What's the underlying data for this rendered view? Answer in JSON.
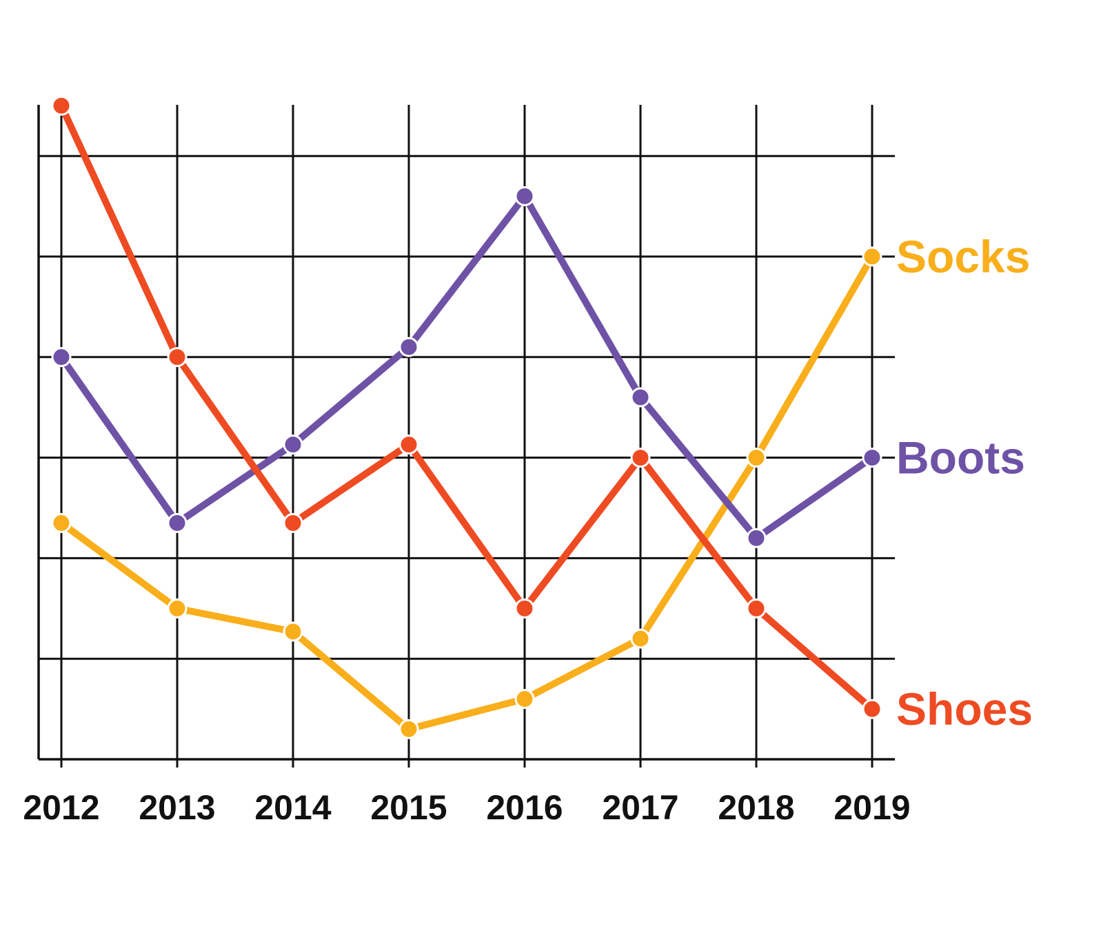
{
  "chart_data": {
    "type": "line",
    "title": "",
    "xlabel": "",
    "ylabel": "",
    "x": [
      "2012",
      "2013",
      "2014",
      "2015",
      "2016",
      "2017",
      "2018",
      "2019"
    ],
    "ylim": [
      0,
      6.5
    ],
    "y_gridlines": [
      1,
      2,
      3,
      4,
      5,
      6
    ],
    "grid": true,
    "legend": "right-end labels",
    "series": [
      {
        "name": "Socks",
        "color": "#F9AE1B",
        "values": [
          2.35,
          1.5,
          1.27,
          0.3,
          0.6,
          1.2,
          3.0,
          5.0
        ]
      },
      {
        "name": "Boots",
        "color": "#6E52A6",
        "values": [
          4.0,
          2.35,
          3.13,
          4.1,
          5.6,
          3.6,
          2.2,
          3.0
        ]
      },
      {
        "name": "Shoes",
        "color": "#EE4B23",
        "values": [
          6.5,
          4.0,
          2.35,
          3.13,
          1.5,
          3.0,
          1.5,
          0.5
        ]
      }
    ]
  }
}
